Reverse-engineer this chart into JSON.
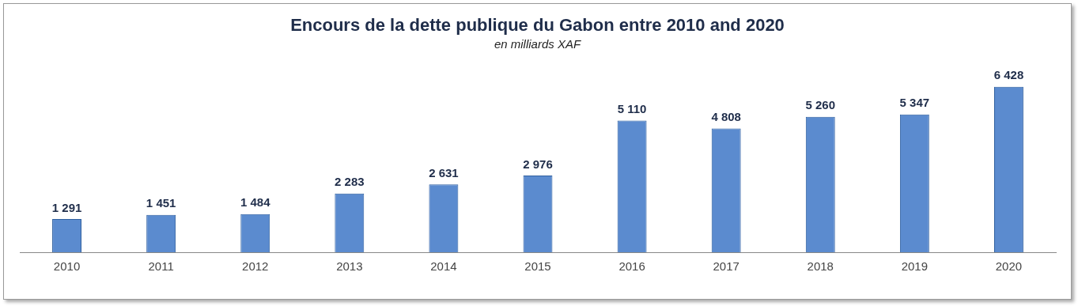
{
  "chart_data": {
    "type": "bar",
    "title": "Encours de la dette publique du Gabon entre 2010 and 2020",
    "subtitle": "en milliards XAF",
    "categories": [
      "2010",
      "2011",
      "2012",
      "2013",
      "2014",
      "2015",
      "2016",
      "2017",
      "2018",
      "2019",
      "2020"
    ],
    "values": [
      1291,
      1451,
      1484,
      2283,
      2631,
      2976,
      5110,
      4808,
      5260,
      5347,
      6428
    ],
    "value_labels": [
      "1 291",
      "1 451",
      "1 484",
      "2 283",
      "2 631",
      "2 976",
      "5 110",
      "4 808",
      "5 260",
      "5 347",
      "6 428"
    ],
    "color": "#5b8bcf",
    "tick_labels": "x",
    "grid": false,
    "legend": false
  }
}
